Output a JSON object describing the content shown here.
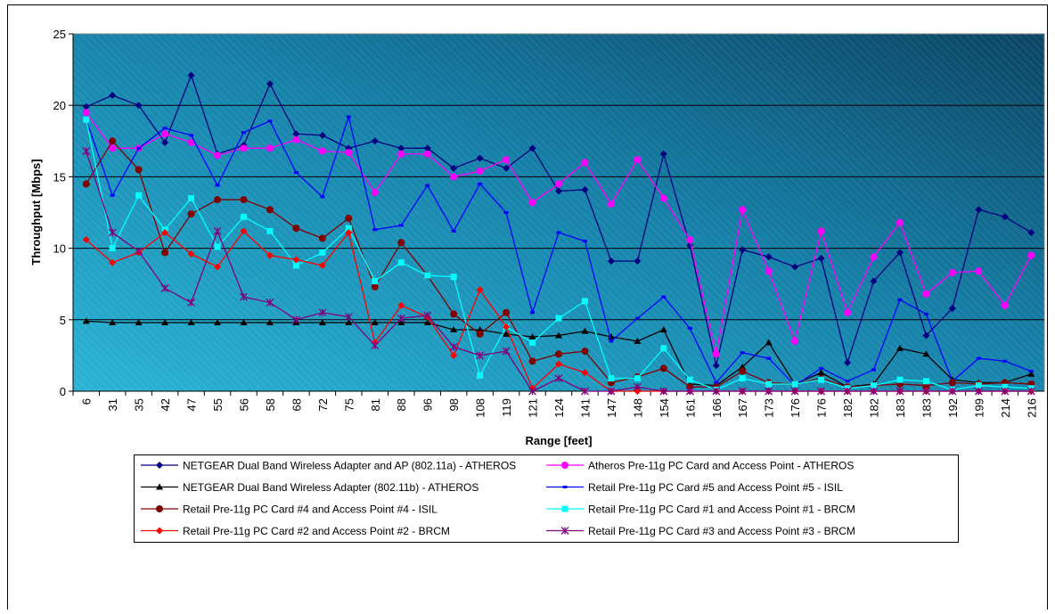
{
  "chart_data": {
    "type": "line",
    "y_label": "Throughput [Mbps]",
    "x_label": "Range [feet]",
    "ylim": [
      0,
      25
    ],
    "yticks": [
      0,
      5,
      10,
      15,
      20,
      25
    ],
    "grid": true,
    "legend": "bottom",
    "categories": [
      "6",
      "31",
      "35",
      "42",
      "47",
      "55",
      "56",
      "58",
      "68",
      "72",
      "75",
      "81",
      "88",
      "96",
      "98",
      "108",
      "119",
      "121",
      "124",
      "141",
      "147",
      "148",
      "154",
      "161",
      "166",
      "167",
      "173",
      "176",
      "176",
      "182",
      "182",
      "183",
      "183",
      "192",
      "199",
      "214",
      "216"
    ],
    "series": [
      {
        "name": "NETGEAR Dual Band Wireless Adapter and AP (802.11a) - ATHEROS",
        "color": "#000080",
        "marker": "diamond",
        "values": [
          19.9,
          20.7,
          20.0,
          17.4,
          22.1,
          16.6,
          17.2,
          21.5,
          18.0,
          17.9,
          17.0,
          17.5,
          17.0,
          17.0,
          15.6,
          16.3,
          15.6,
          17.0,
          14.0,
          14.1,
          9.1,
          9.1,
          16.6,
          10.2,
          1.8,
          9.9,
          9.4,
          8.7,
          9.3,
          2.0,
          7.7,
          9.7,
          3.9,
          5.8,
          12.7,
          12.2,
          11.1
        ]
      },
      {
        "name": "Atheros Pre-11g PC Card and Access Point - ATHEROS",
        "color": "#ff00ff",
        "marker": "circle",
        "values": [
          19.5,
          17.0,
          17.0,
          18.0,
          17.4,
          16.5,
          17.0,
          17.0,
          17.6,
          16.8,
          16.7,
          13.9,
          16.6,
          16.6,
          15.0,
          15.4,
          16.2,
          13.2,
          14.5,
          16.0,
          13.1,
          16.2,
          13.5,
          10.6,
          2.6,
          12.7,
          8.4,
          3.5,
          11.2,
          5.5,
          9.4,
          11.8,
          6.8,
          8.3,
          8.4,
          6.0,
          9.5
        ]
      },
      {
        "name": "NETGEAR Dual Band Wireless Adapter (802.11b) - ATHEROS",
        "color": "#000000",
        "marker": "triangle",
        "values": [
          4.9,
          4.8,
          4.8,
          4.8,
          4.8,
          4.8,
          4.8,
          4.8,
          4.8,
          4.8,
          4.8,
          4.8,
          4.8,
          4.8,
          4.3,
          4.3,
          4.0,
          3.8,
          3.9,
          4.2,
          3.8,
          3.5,
          4.3,
          0.5,
          0.4,
          1.7,
          3.4,
          0.5,
          1.3,
          0.3,
          0.5,
          3.0,
          2.6,
          0.8,
          0.6,
          0.6,
          1.2
        ]
      },
      {
        "name": "Retail Pre-11g PC Card #5 and Access Point #5 - ISIL",
        "color": "#0000ff",
        "marker": "dash",
        "values": [
          19.0,
          13.7,
          17.0,
          18.4,
          17.9,
          14.4,
          18.1,
          18.9,
          15.3,
          13.6,
          19.2,
          11.3,
          11.6,
          14.4,
          11.2,
          14.5,
          12.5,
          5.5,
          11.1,
          10.5,
          3.5,
          5.1,
          6.6,
          4.4,
          0.6,
          2.7,
          2.3,
          0.4,
          1.6,
          0.7,
          1.5,
          6.4,
          5.4,
          0.7,
          2.3,
          2.1,
          1.4
        ]
      },
      {
        "name": "Retail Pre-11g PC Card #4 and Access Point #4 - ISIL",
        "color": "#800000",
        "marker": "circle",
        "values": [
          14.5,
          17.5,
          15.5,
          9.7,
          12.4,
          13.4,
          13.4,
          12.7,
          11.4,
          10.7,
          12.1,
          7.3,
          10.4,
          8.1,
          5.4,
          4.0,
          5.5,
          2.1,
          2.6,
          2.8,
          0.6,
          1.0,
          1.6,
          0.3,
          0.3,
          1.4,
          0.6,
          0.5,
          0.9,
          0.3,
          0.4,
          0.5,
          0.4,
          0.6,
          0.5,
          0.6,
          0.5
        ]
      },
      {
        "name": "Retail Pre-11g PC Card #1 and Access Point #1 - BRCM",
        "color": "#00ffff",
        "marker": "square",
        "values": [
          19.0,
          10.0,
          13.7,
          11.3,
          13.5,
          10.1,
          12.2,
          11.2,
          8.8,
          9.7,
          11.4,
          7.7,
          9.0,
          8.1,
          8.0,
          1.1,
          4.5,
          3.4,
          5.1,
          6.3,
          0.9,
          0.9,
          3.0,
          0.8,
          0.1,
          0.9,
          0.5,
          0.5,
          0.8,
          0.2,
          0.4,
          0.8,
          0.7,
          0.1,
          0.4,
          0.3,
          0.2
        ]
      },
      {
        "name": "Retail Pre-11g PC Card #2 and Access Point #2 - BRCM",
        "color": "#ff0000",
        "marker": "diamond",
        "values": [
          10.6,
          9.0,
          9.7,
          11.1,
          9.6,
          8.7,
          11.2,
          9.5,
          9.2,
          8.8,
          11.1,
          3.4,
          6.0,
          5.2,
          2.5,
          7.1,
          4.5,
          0.2,
          1.9,
          1.3,
          0,
          0,
          0,
          0,
          0,
          0,
          0,
          0,
          0,
          0,
          0,
          0,
          0,
          0,
          0,
          0,
          0
        ]
      },
      {
        "name": "Retail Pre-11g PC Card #3 and Access Point #3 - BRCM",
        "color": "#800080",
        "marker": "star",
        "values": [
          16.8,
          11.1,
          9.8,
          7.2,
          6.2,
          11.2,
          6.6,
          6.2,
          5.0,
          5.5,
          5.2,
          3.2,
          5.1,
          5.3,
          3.1,
          2.5,
          2.8,
          0,
          0.9,
          0,
          0,
          0.3,
          0,
          0,
          0,
          0,
          0,
          0,
          0,
          0,
          0,
          0,
          0,
          0,
          0,
          0,
          0
        ]
      }
    ]
  }
}
